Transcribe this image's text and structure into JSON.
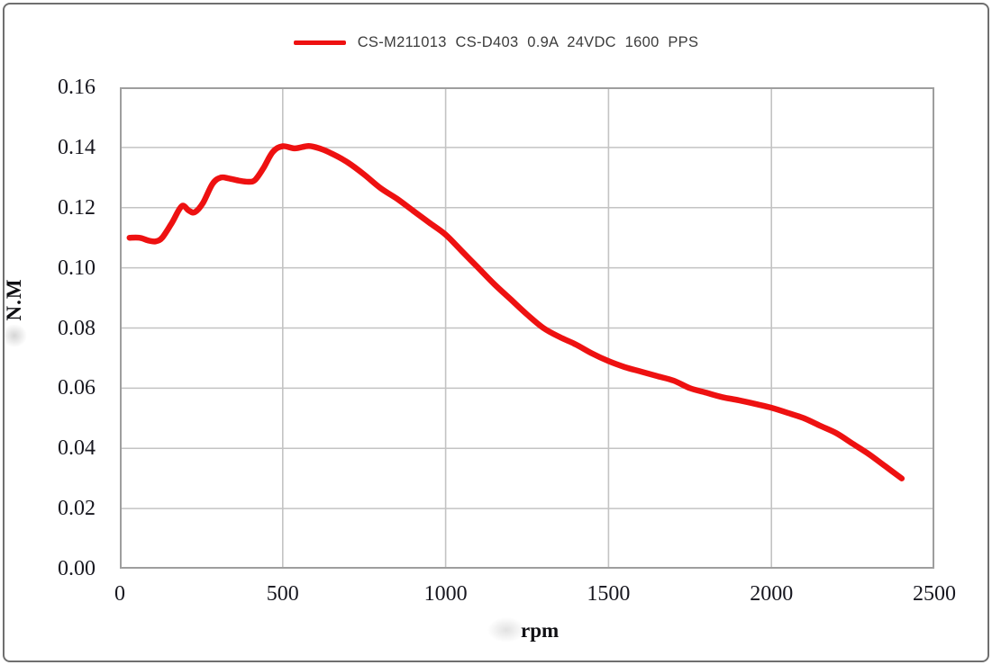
{
  "legend": {
    "series_label": "CS-M211013  CS-D403  0.9A  24VDC  1600  PPS",
    "swatch_color": "#ee1111"
  },
  "axes": {
    "y_label": "N.M",
    "x_label": "rpm"
  },
  "colors": {
    "curve": "#ee1111",
    "grid": "#c3c3c3",
    "plot_border": "#9e9e9e",
    "tick_text": "#17171f"
  },
  "chart_data": {
    "type": "line",
    "title": "",
    "xlabel": "rpm",
    "ylabel": "N.M",
    "xlim": [
      0,
      2500
    ],
    "ylim": [
      0,
      0.16
    ],
    "x_tick_labels": [
      "0",
      "500",
      "1000",
      "1500",
      "2000",
      "2500"
    ],
    "y_tick_labels": [
      "0.00",
      "0.02",
      "0.04",
      "0.06",
      "0.08",
      "0.10",
      "0.12",
      "0.14",
      "0.16"
    ],
    "grid": true,
    "legend_position": "top-center",
    "series": [
      {
        "name": "CS-M211013 CS-D403 0.9A 24VDC 1600 PPS",
        "color": "#ee1111",
        "points": [
          [
            30,
            0.11
          ],
          [
            60,
            0.11
          ],
          [
            90,
            0.109
          ],
          [
            110,
            0.1088
          ],
          [
            130,
            0.11
          ],
          [
            160,
            0.115
          ],
          [
            190,
            0.1205
          ],
          [
            212,
            0.119
          ],
          [
            230,
            0.1185
          ],
          [
            255,
            0.1215
          ],
          [
            285,
            0.128
          ],
          [
            310,
            0.13
          ],
          [
            335,
            0.1297
          ],
          [
            365,
            0.129
          ],
          [
            395,
            0.1286
          ],
          [
            415,
            0.1292
          ],
          [
            440,
            0.133
          ],
          [
            470,
            0.1386
          ],
          [
            500,
            0.1404
          ],
          [
            538,
            0.1397
          ],
          [
            580,
            0.1405
          ],
          [
            615,
            0.1396
          ],
          [
            650,
            0.138
          ],
          [
            700,
            0.135
          ],
          [
            750,
            0.131
          ],
          [
            800,
            0.1265
          ],
          [
            850,
            0.123
          ],
          [
            900,
            0.119
          ],
          [
            950,
            0.115
          ],
          [
            1000,
            0.111
          ],
          [
            1050,
            0.1055
          ],
          [
            1100,
            0.1
          ],
          [
            1150,
            0.0945
          ],
          [
            1200,
            0.0895
          ],
          [
            1250,
            0.0845
          ],
          [
            1300,
            0.08
          ],
          [
            1350,
            0.077
          ],
          [
            1400,
            0.0745
          ],
          [
            1450,
            0.0715
          ],
          [
            1500,
            0.069
          ],
          [
            1550,
            0.067
          ],
          [
            1600,
            0.0655
          ],
          [
            1650,
            0.064
          ],
          [
            1700,
            0.0625
          ],
          [
            1750,
            0.06
          ],
          [
            1800,
            0.0585
          ],
          [
            1850,
            0.057
          ],
          [
            1900,
            0.056
          ],
          [
            1950,
            0.0548
          ],
          [
            2000,
            0.0535
          ],
          [
            2050,
            0.0518
          ],
          [
            2100,
            0.05
          ],
          [
            2150,
            0.0475
          ],
          [
            2200,
            0.045
          ],
          [
            2250,
            0.0415
          ],
          [
            2300,
            0.038
          ],
          [
            2350,
            0.034
          ],
          [
            2400,
            0.03
          ]
        ]
      }
    ]
  }
}
